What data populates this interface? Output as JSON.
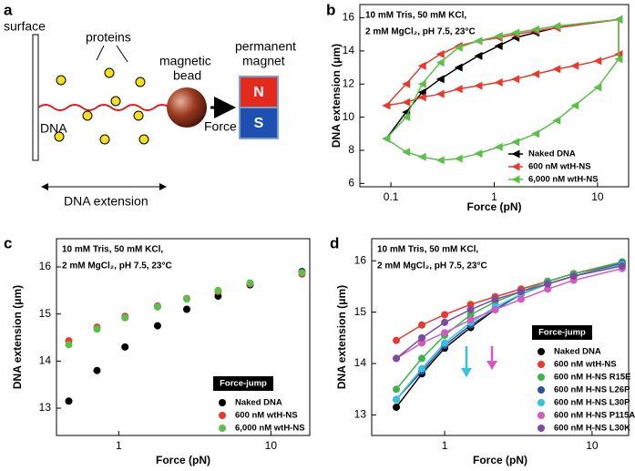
{
  "diagram": {
    "label": "a",
    "surface": "surface",
    "proteins": "proteins",
    "bead": [
      "magnetic",
      "bead"
    ],
    "magnet": [
      "permanent",
      "magnet"
    ],
    "north": "N",
    "south": "S",
    "dna": "DNA",
    "force": "Force",
    "extension": "DNA extension"
  },
  "chart_data": [
    {
      "type": "line",
      "label": "b",
      "marker": "triangle",
      "log_x": true,
      "legend": "lower right",
      "annotation": [
        "10 mM Tris, 50 mM KCl,",
        "2 mM MgCl₂, pH 7.5, 23°C"
      ],
      "xlabel": "Force (pN)",
      "ylabel": "DNA extension (μm)",
      "xlim": [
        0.05,
        20
      ],
      "xticks": [
        0.1,
        1,
        10
      ],
      "ylim": [
        5.8,
        16.8
      ],
      "yticks": [
        6,
        8,
        10,
        12,
        14,
        16
      ],
      "series": [
        {
          "name": "Naked DNA",
          "color": "#000000",
          "x": [
            0.09,
            0.14,
            0.2,
            0.3,
            0.45,
            0.7,
            1.1,
            1.6,
            2.5,
            4,
            16
          ],
          "values": [
            8.7,
            10.3,
            11.5,
            12.3,
            13.0,
            13.7,
            14.3,
            14.8,
            15.1,
            15.4,
            15.9
          ]
        },
        {
          "name": "600 nM wtH-NS",
          "color": "#e8392e",
          "x": [
            0.09,
            0.14,
            0.2,
            0.3,
            0.45,
            0.7,
            1.1,
            1.6,
            2.5,
            4,
            16,
            16,
            10,
            6,
            4,
            2.5,
            1.6,
            1.1,
            0.7,
            0.45,
            0.3,
            0.2,
            0.14,
            0.09
          ],
          "values": [
            10.7,
            12.0,
            13.1,
            13.8,
            14.3,
            14.6,
            14.8,
            15.0,
            15.2,
            15.4,
            15.9,
            13.8,
            13.4,
            13.1,
            12.9,
            12.6,
            12.3,
            12.1,
            11.9,
            11.7,
            11.4,
            11.2,
            10.9,
            10.7
          ]
        },
        {
          "name": "6,000 nM wtH-NS",
          "color": "#5cbf4a",
          "x": [
            0.09,
            0.14,
            0.2,
            0.3,
            0.45,
            0.7,
            1.1,
            1.6,
            2.5,
            4,
            16,
            16,
            10,
            6,
            4,
            2.5,
            1.6,
            1.1,
            0.7,
            0.45,
            0.3,
            0.2,
            0.14,
            0.09
          ],
          "values": [
            8.7,
            10.0,
            12.0,
            13.3,
            14.2,
            14.6,
            14.9,
            15.1,
            15.3,
            15.5,
            15.9,
            13.5,
            11.8,
            10.7,
            9.8,
            9.0,
            8.5,
            8.2,
            7.8,
            7.5,
            7.4,
            7.6,
            7.9,
            8.7
          ]
        }
      ]
    },
    {
      "type": "scatter",
      "label": "c",
      "marker": "circle",
      "log_x": true,
      "legend": "lower right",
      "legend_title": "Force-jump",
      "annotation": [
        "10 mM Tris, 50 mM KCl,",
        "2 mM MgCl₂, pH 7.5, 23°C"
      ],
      "xlabel": "Force (pN)",
      "ylabel": "DNA extension (μm)",
      "xlim": [
        0.39,
        18
      ],
      "xticks": [
        1,
        10
      ],
      "ylim": [
        12.42,
        16.6
      ],
      "yticks": [
        13,
        14,
        15,
        16
      ],
      "x": [
        0.47,
        0.72,
        1.1,
        1.8,
        2.8,
        4.5,
        7.3,
        16
      ],
      "series": [
        {
          "name": "Naked DNA",
          "color": "#000000",
          "values": [
            13.15,
            13.8,
            14.3,
            14.75,
            15.1,
            15.38,
            15.62,
            15.9
          ]
        },
        {
          "name": "600 nM wtH-NS",
          "color": "#e8392e",
          "values": [
            14.43,
            14.72,
            14.95,
            15.17,
            15.33,
            15.48,
            15.64,
            15.85
          ]
        },
        {
          "name": "6,000 nM wtH-NS",
          "color": "#5cbf4a",
          "values": [
            14.35,
            14.68,
            14.92,
            15.15,
            15.32,
            15.5,
            15.66,
            15.88
          ]
        }
      ]
    },
    {
      "type": "line",
      "label": "d",
      "marker": "circle",
      "log_x": true,
      "legend": "lower right",
      "legend_title": "Force-jump",
      "annotation": [
        "10 mM Tris, 50 mM KCl,",
        "2 mM MgCl₂, pH 7.5, 23°C"
      ],
      "xlabel": "Force (pN)",
      "ylabel": "DNA extension (μm)",
      "xlim": [
        0.32,
        17.7
      ],
      "xticks": [
        1,
        10
      ],
      "ylim": [
        12.6,
        16.43
      ],
      "yticks": [
        13,
        14,
        15,
        16
      ],
      "x": [
        0.47,
        0.7,
        1.0,
        1.5,
        2.2,
        3.3,
        5,
        7.5,
        16
      ],
      "series": [
        {
          "name": "Naked DNA",
          "color": "#000000",
          "values": [
            13.15,
            13.8,
            14.3,
            14.7,
            15.05,
            15.35,
            15.55,
            15.7,
            15.95
          ]
        },
        {
          "name": "600 nM wtH-NS",
          "color": "#e8392e",
          "values": [
            14.45,
            14.75,
            14.95,
            15.15,
            15.3,
            15.45,
            15.6,
            15.75,
            15.95
          ]
        },
        {
          "name": "600 nM H-NS R15E",
          "color": "#3cb44b",
          "values": [
            13.5,
            14.1,
            14.55,
            14.95,
            15.2,
            15.4,
            15.6,
            15.75,
            15.98
          ]
        },
        {
          "name": "600 nM H-NS L26P",
          "color": "#2c4fa0",
          "values": [
            13.3,
            13.85,
            14.35,
            14.75,
            15.05,
            15.35,
            15.55,
            15.7,
            15.95
          ]
        },
        {
          "name": "600 nM H-NS L30P",
          "color": "#33c3e0",
          "values": [
            13.3,
            13.9,
            14.4,
            14.8,
            15.1,
            15.35,
            15.55,
            15.7,
            15.93
          ]
        },
        {
          "name": "600 nM H-NS P115A",
          "color": "#d659c0",
          "values": [
            14.1,
            14.4,
            14.6,
            14.85,
            15.05,
            15.25,
            15.45,
            15.62,
            15.85
          ]
        },
        {
          "name": "600 nM H-NS L30K",
          "color": "#7b4ba0",
          "values": [
            14.1,
            14.5,
            14.8,
            15.05,
            15.25,
            15.4,
            15.55,
            15.7,
            15.9
          ]
        }
      ]
    }
  ]
}
